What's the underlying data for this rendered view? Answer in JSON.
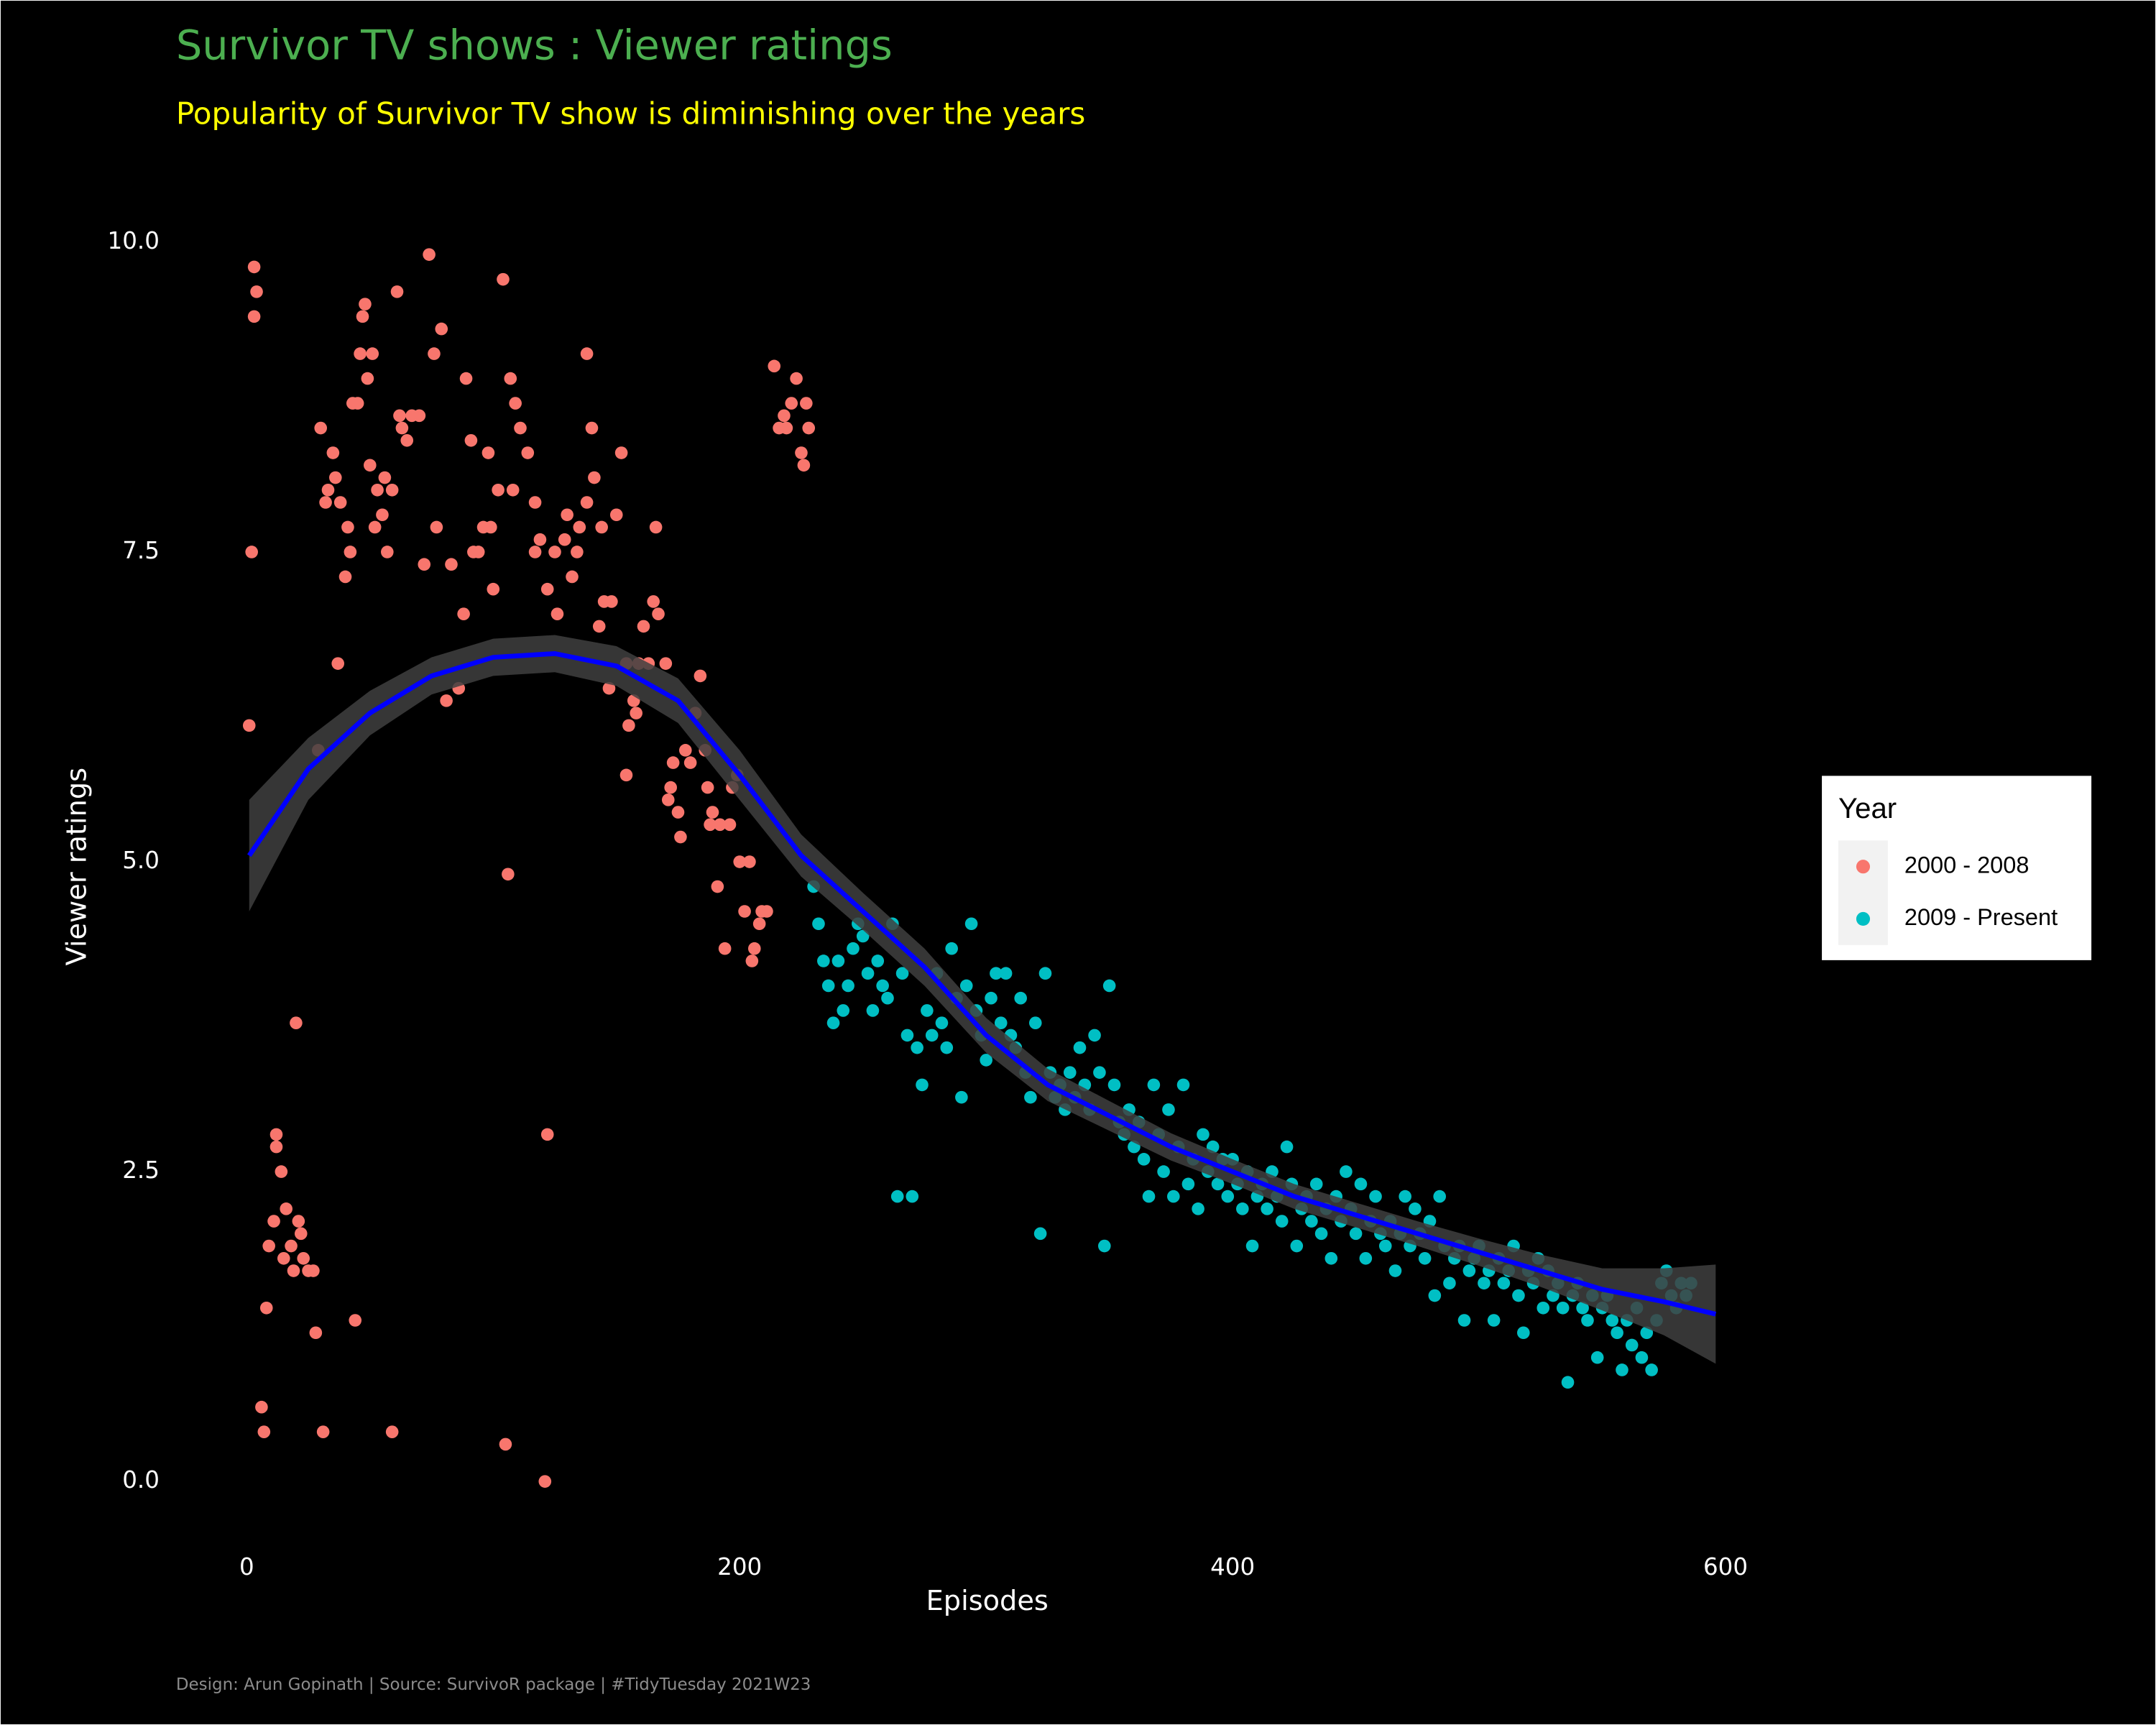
{
  "chart_data": {
    "type": "scatter",
    "title": "Survivor TV shows : Viewer ratings",
    "subtitle": "Popularity of Survivor TV show is diminishing over the years",
    "caption": "Design: Arun Gopinath | Source: SurvivoR package | #TidyTuesday 2021W23",
    "x_label": "Episodes",
    "y_label": "Viewer ratings",
    "legend_title": "Year",
    "legend": "right",
    "grid": false,
    "xlim": [
      -28.7,
      625.7
    ],
    "ylim": [
      -0.5,
      10.4
    ],
    "xticks": [
      0,
      200,
      400,
      600
    ],
    "yticks": [
      {
        "value": 0,
        "label": "0.0"
      },
      2.5,
      {
        "value": 5,
        "label": "5.0"
      },
      7.5,
      {
        "value": 10,
        "label": "10.0"
      }
    ],
    "series": [
      {
        "name": "2000 - 2008",
        "color": "#f8766d",
        "x": [
          1,
          2,
          3,
          3,
          4,
          6,
          7,
          8,
          9,
          11,
          12,
          12,
          14,
          15,
          16,
          18,
          19,
          20,
          21,
          22,
          23,
          25,
          27,
          28,
          29,
          30,
          31,
          32,
          33,
          35,
          36,
          37,
          38,
          40,
          41,
          42,
          43,
          44,
          45,
          46,
          47,
          48,
          49,
          50,
          51,
          52,
          53,
          55,
          56,
          57,
          59,
          59,
          61,
          62,
          63,
          65,
          67,
          70,
          72,
          74,
          76,
          77,
          79,
          81,
          83,
          86,
          88,
          89,
          91,
          92,
          94,
          96,
          98,
          99,
          100,
          102,
          104,
          105,
          106,
          107,
          108,
          109,
          111,
          114,
          117,
          117,
          119,
          121,
          122,
          122,
          125,
          126,
          129,
          130,
          132,
          134,
          135,
          138,
          138,
          140,
          141,
          143,
          144,
          145,
          147,
          148,
          150,
          152,
          154,
          154,
          155,
          157,
          158,
          159,
          161,
          163,
          165,
          166,
          167,
          170,
          171,
          172,
          173,
          175,
          176,
          178,
          180,
          182,
          184,
          186,
          187,
          188,
          189,
          191,
          192,
          194,
          196,
          197,
          199,
          200,
          202,
          204,
          205,
          206,
          208,
          209,
          211,
          214,
          216,
          218,
          219,
          221,
          223,
          225,
          226,
          227,
          228
        ],
        "values": [
          6.1,
          7.5,
          9.4,
          9.8,
          9.6,
          0.6,
          0.4,
          1.4,
          1.9,
          2.1,
          2.8,
          2.7,
          2.5,
          1.8,
          2.2,
          1.9,
          1.7,
          3.7,
          2.1,
          2.0,
          1.8,
          1.7,
          1.7,
          1.2,
          5.9,
          8.5,
          0.4,
          7.9,
          8.0,
          8.3,
          8.1,
          6.6,
          7.9,
          7.3,
          7.7,
          7.5,
          8.7,
          1.3,
          8.7,
          9.1,
          9.4,
          9.5,
          8.9,
          8.2,
          9.1,
          7.7,
          8.0,
          7.8,
          8.1,
          7.5,
          0.4,
          8.0,
          9.6,
          8.6,
          8.5,
          8.4,
          8.6,
          8.6,
          7.4,
          9.9,
          9.1,
          7.7,
          9.3,
          6.3,
          7.4,
          6.4,
          7.0,
          8.9,
          8.4,
          7.5,
          7.5,
          7.7,
          8.3,
          7.7,
          7.2,
          8.0,
          9.7,
          0.3,
          4.9,
          8.9,
          8.0,
          8.7,
          8.5,
          8.3,
          7.9,
          7.5,
          7.6,
          0.0,
          2.8,
          7.2,
          7.5,
          7.0,
          7.6,
          7.8,
          7.3,
          7.5,
          7.7,
          9.1,
          7.9,
          8.5,
          8.1,
          6.9,
          7.7,
          7.1,
          6.4,
          7.1,
          7.8,
          8.3,
          6.6,
          5.7,
          6.1,
          6.3,
          6.2,
          6.6,
          6.9,
          6.6,
          7.1,
          7.7,
          7.0,
          6.6,
          5.5,
          5.6,
          5.8,
          5.4,
          5.2,
          5.9,
          5.8,
          6.2,
          6.5,
          5.9,
          5.6,
          5.3,
          5.4,
          4.8,
          5.3,
          4.3,
          5.3,
          5.6,
          5.7,
          5.0,
          4.6,
          5.0,
          4.2,
          4.3,
          4.5,
          4.6,
          4.6,
          9.0,
          8.5,
          8.6,
          8.5,
          8.7,
          8.9,
          8.3,
          8.2,
          8.7,
          8.5
        ]
      },
      {
        "name": "2009 - Present",
        "color": "#00bfc4",
        "x": [
          230,
          232,
          234,
          236,
          238,
          240,
          242,
          244,
          246,
          248,
          250,
          252,
          254,
          256,
          258,
          260,
          262,
          264,
          266,
          268,
          270,
          272,
          274,
          276,
          278,
          280,
          282,
          284,
          286,
          288,
          290,
          292,
          294,
          296,
          298,
          300,
          302,
          304,
          306,
          308,
          310,
          312,
          314,
          316,
          318,
          320,
          322,
          324,
          326,
          328,
          330,
          332,
          334,
          336,
          338,
          340,
          342,
          344,
          346,
          348,
          350,
          352,
          354,
          356,
          358,
          360,
          362,
          364,
          366,
          368,
          370,
          372,
          374,
          376,
          378,
          380,
          382,
          384,
          386,
          388,
          390,
          392,
          394,
          396,
          398,
          400,
          402,
          404,
          406,
          408,
          410,
          412,
          414,
          416,
          418,
          420,
          422,
          424,
          426,
          428,
          430,
          432,
          434,
          436,
          438,
          440,
          442,
          444,
          446,
          448,
          450,
          452,
          454,
          456,
          458,
          460,
          462,
          464,
          466,
          468,
          470,
          472,
          474,
          476,
          478,
          480,
          482,
          484,
          486,
          488,
          490,
          492,
          494,
          496,
          498,
          500,
          502,
          504,
          506,
          508,
          510,
          512,
          514,
          516,
          518,
          520,
          522,
          524,
          526,
          528,
          530,
          532,
          534,
          536,
          538,
          540,
          542,
          544,
          546,
          548,
          550,
          552,
          554,
          556,
          558,
          560,
          562,
          564,
          566,
          568,
          570,
          572,
          574,
          576,
          578,
          580,
          582,
          584,
          586
        ],
        "values": [
          4.8,
          4.5,
          4.2,
          4.0,
          3.7,
          4.2,
          3.8,
          4.0,
          4.3,
          4.5,
          4.4,
          4.1,
          3.8,
          4.2,
          4.0,
          3.9,
          4.5,
          2.3,
          4.1,
          3.6,
          2.3,
          3.5,
          3.2,
          3.8,
          3.6,
          4.1,
          3.7,
          3.5,
          4.3,
          3.9,
          3.1,
          4.0,
          4.5,
          3.8,
          3.6,
          3.4,
          3.9,
          4.1,
          3.7,
          4.1,
          3.6,
          3.5,
          3.9,
          3.3,
          3.1,
          3.7,
          2.0,
          4.1,
          3.3,
          3.1,
          3.2,
          3.0,
          3.3,
          3.1,
          3.5,
          3.2,
          3.0,
          3.6,
          3.3,
          1.9,
          4.0,
          3.2,
          2.9,
          2.8,
          3.0,
          2.7,
          2.9,
          2.6,
          2.3,
          3.2,
          2.8,
          2.5,
          3.0,
          2.3,
          2.7,
          3.2,
          2.4,
          2.6,
          2.2,
          2.8,
          2.5,
          2.7,
          2.4,
          2.6,
          2.3,
          2.6,
          2.4,
          2.2,
          2.5,
          1.9,
          2.3,
          2.4,
          2.2,
          2.5,
          2.3,
          2.1,
          2.7,
          2.4,
          1.9,
          2.2,
          2.3,
          2.1,
          2.4,
          2.0,
          2.2,
          1.8,
          2.3,
          2.1,
          2.5,
          2.2,
          2.0,
          2.4,
          1.8,
          2.1,
          2.3,
          2.0,
          1.9,
          2.1,
          1.7,
          2.0,
          2.3,
          1.9,
          2.2,
          2.0,
          1.8,
          2.1,
          1.5,
          2.3,
          1.9,
          1.6,
          1.8,
          1.9,
          1.3,
          1.7,
          1.8,
          1.9,
          1.6,
          1.7,
          1.3,
          1.8,
          1.6,
          1.7,
          1.9,
          1.5,
          1.2,
          1.7,
          1.6,
          1.8,
          1.4,
          1.7,
          1.5,
          1.6,
          1.4,
          0.8,
          1.5,
          1.6,
          1.4,
          1.3,
          1.5,
          1.0,
          1.4,
          1.5,
          1.3,
          1.2,
          0.9,
          1.3,
          1.1,
          1.4,
          1.0,
          1.2,
          0.9,
          1.3,
          1.6,
          1.7,
          1.5,
          1.4,
          1.6,
          1.5,
          1.6
        ]
      }
    ],
    "trend": {
      "color": "#0000ff",
      "band_color": "#404040",
      "x": [
        1,
        25,
        50,
        75,
        100,
        125,
        150,
        175,
        200,
        225,
        250,
        275,
        300,
        325,
        350,
        375,
        400,
        425,
        450,
        475,
        500,
        525,
        550,
        575,
        596
      ],
      "values": [
        5.05,
        5.75,
        6.2,
        6.5,
        6.65,
        6.68,
        6.58,
        6.3,
        5.7,
        5.05,
        4.6,
        4.15,
        3.6,
        3.2,
        2.95,
        2.7,
        2.5,
        2.3,
        2.15,
        2.0,
        1.85,
        1.7,
        1.55,
        1.45,
        1.35
      ],
      "lower": [
        4.6,
        5.5,
        6.02,
        6.35,
        6.5,
        6.53,
        6.42,
        6.12,
        5.5,
        4.88,
        4.45,
        4.0,
        3.46,
        3.07,
        2.83,
        2.59,
        2.4,
        2.2,
        2.05,
        1.9,
        1.74,
        1.57,
        1.38,
        1.18,
        0.95
      ],
      "upper": [
        5.5,
        6.0,
        6.38,
        6.65,
        6.8,
        6.83,
        6.74,
        6.48,
        5.9,
        5.22,
        4.75,
        4.3,
        3.74,
        3.33,
        3.07,
        2.81,
        2.6,
        2.4,
        2.25,
        2.1,
        1.96,
        1.83,
        1.72,
        1.72,
        1.75
      ]
    }
  }
}
